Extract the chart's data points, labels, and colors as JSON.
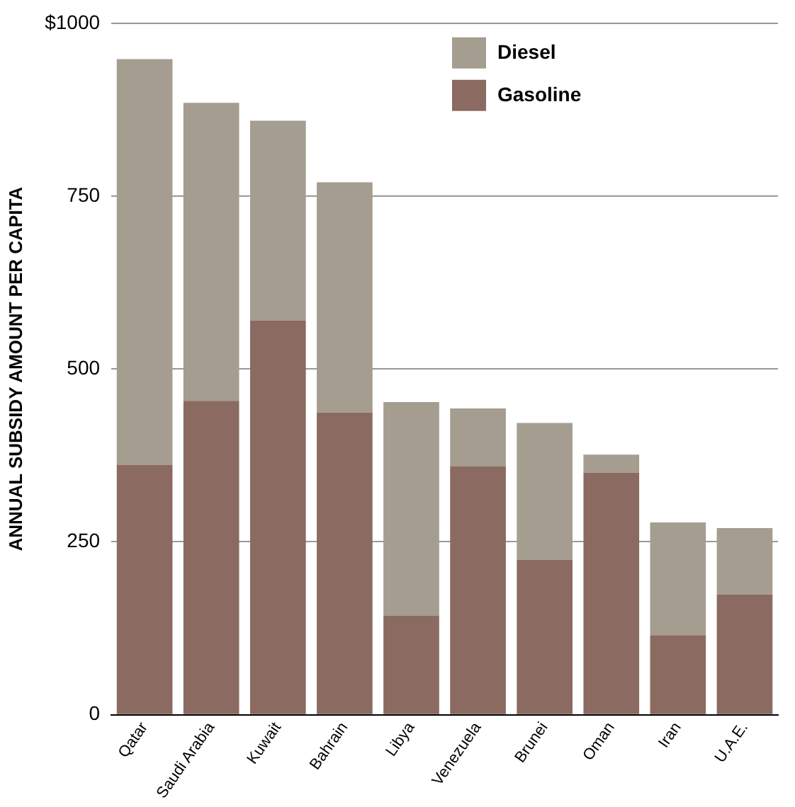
{
  "chart_data": {
    "type": "bar",
    "stacked": true,
    "ylabel": "ANNUAL SUBSIDY AMOUNT PER CAPITA",
    "categories": [
      "Qatar",
      "Saudi Arabia",
      "Kuwait",
      "Bahrain",
      "Libya",
      "Venezuela",
      "Brunei",
      "Oman",
      "Iran",
      "U.A.E."
    ],
    "series": [
      {
        "name": "Gasoline",
        "color": "#8b6a61",
        "values": [
          361,
          454,
          570,
          437,
          143,
          359,
          224,
          350,
          115,
          174
        ]
      },
      {
        "name": "Diesel",
        "color": "#a49d90",
        "values": [
          587,
          431,
          289,
          333,
          309,
          84,
          198,
          26,
          163,
          96
        ]
      }
    ],
    "ylim": [
      0,
      1000
    ],
    "yticks": [
      0,
      250,
      500,
      750,
      {
        "value": 1000,
        "label": "$1000"
      }
    ],
    "grid": "y",
    "legend": "top right"
  }
}
